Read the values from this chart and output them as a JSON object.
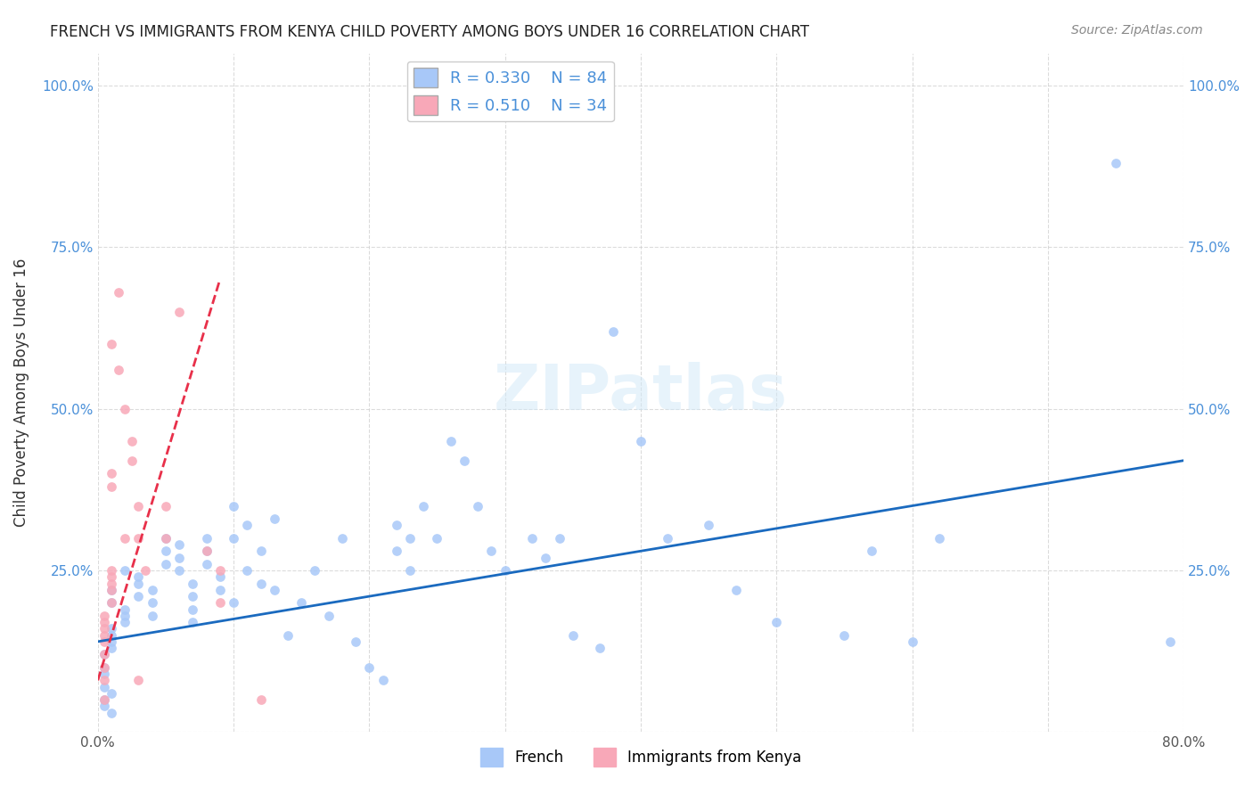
{
  "title": "FRENCH VS IMMIGRANTS FROM KENYA CHILD POVERTY AMONG BOYS UNDER 16 CORRELATION CHART",
  "source": "Source: ZipAtlas.com",
  "xlabel_bottom": "",
  "ylabel": "Child Poverty Among Boys Under 16",
  "x_min": 0.0,
  "x_max": 0.8,
  "y_min": 0.0,
  "y_max": 1.05,
  "x_ticks": [
    0.0,
    0.1,
    0.2,
    0.3,
    0.4,
    0.5,
    0.6,
    0.7,
    0.8
  ],
  "x_tick_labels": [
    "0.0%",
    "",
    "",
    "",
    "",
    "",
    "",
    "",
    "80.0%"
  ],
  "y_ticks": [
    0.0,
    0.25,
    0.5,
    0.75,
    1.0
  ],
  "y_tick_labels": [
    "",
    "25.0%",
    "50.0%",
    "75.0%",
    "100.0%"
  ],
  "legend_r1": "R = 0.330",
  "legend_n1": "N = 84",
  "legend_r2": "R = 0.510",
  "legend_n2": "N = 34",
  "french_color": "#a8c8f8",
  "kenya_color": "#f8a8b8",
  "french_line_color": "#1a6abf",
  "kenya_line_color": "#e8304a",
  "watermark": "ZIPatlas",
  "french_scatter_x": [
    0.01,
    0.01,
    0.02,
    0.02,
    0.01,
    0.01,
    0.01,
    0.005,
    0.005,
    0.005,
    0.005,
    0.01,
    0.005,
    0.005,
    0.01,
    0.01,
    0.02,
    0.02,
    0.03,
    0.03,
    0.03,
    0.04,
    0.04,
    0.04,
    0.05,
    0.05,
    0.05,
    0.06,
    0.06,
    0.06,
    0.07,
    0.07,
    0.07,
    0.07,
    0.08,
    0.08,
    0.08,
    0.09,
    0.09,
    0.1,
    0.1,
    0.1,
    0.11,
    0.11,
    0.12,
    0.12,
    0.13,
    0.13,
    0.14,
    0.15,
    0.16,
    0.17,
    0.18,
    0.19,
    0.2,
    0.21,
    0.22,
    0.22,
    0.23,
    0.23,
    0.24,
    0.25,
    0.26,
    0.27,
    0.28,
    0.29,
    0.3,
    0.32,
    0.33,
    0.34,
    0.35,
    0.37,
    0.38,
    0.4,
    0.42,
    0.45,
    0.47,
    0.5,
    0.55,
    0.57,
    0.6,
    0.62,
    0.75,
    0.79
  ],
  "french_scatter_y": [
    0.2,
    0.22,
    0.18,
    0.25,
    0.15,
    0.14,
    0.13,
    0.12,
    0.1,
    0.09,
    0.07,
    0.06,
    0.05,
    0.04,
    0.03,
    0.16,
    0.17,
    0.19,
    0.21,
    0.23,
    0.24,
    0.22,
    0.2,
    0.18,
    0.26,
    0.28,
    0.3,
    0.29,
    0.27,
    0.25,
    0.23,
    0.21,
    0.19,
    0.17,
    0.3,
    0.28,
    0.26,
    0.24,
    0.22,
    0.35,
    0.3,
    0.2,
    0.32,
    0.25,
    0.28,
    0.23,
    0.33,
    0.22,
    0.15,
    0.2,
    0.25,
    0.18,
    0.3,
    0.14,
    0.1,
    0.08,
    0.32,
    0.28,
    0.3,
    0.25,
    0.35,
    0.3,
    0.45,
    0.42,
    0.35,
    0.28,
    0.25,
    0.3,
    0.27,
    0.3,
    0.15,
    0.13,
    0.62,
    0.45,
    0.3,
    0.32,
    0.22,
    0.17,
    0.15,
    0.28,
    0.14,
    0.3,
    0.88,
    0.14
  ],
  "kenya_scatter_x": [
    0.005,
    0.005,
    0.005,
    0.005,
    0.005,
    0.005,
    0.005,
    0.005,
    0.01,
    0.01,
    0.01,
    0.01,
    0.01,
    0.005,
    0.01,
    0.01,
    0.01,
    0.015,
    0.015,
    0.02,
    0.02,
    0.025,
    0.025,
    0.03,
    0.03,
    0.03,
    0.035,
    0.05,
    0.05,
    0.06,
    0.08,
    0.09,
    0.09,
    0.12
  ],
  "kenya_scatter_y": [
    0.17,
    0.18,
    0.16,
    0.15,
    0.14,
    0.12,
    0.1,
    0.08,
    0.2,
    0.22,
    0.23,
    0.24,
    0.25,
    0.05,
    0.38,
    0.4,
    0.6,
    0.68,
    0.56,
    0.5,
    0.3,
    0.42,
    0.45,
    0.35,
    0.3,
    0.08,
    0.25,
    0.3,
    0.35,
    0.65,
    0.28,
    0.25,
    0.2,
    0.05
  ],
  "french_line_x": [
    0.0,
    0.8
  ],
  "french_line_y": [
    0.14,
    0.42
  ],
  "kenya_line_x": [
    0.0,
    0.09
  ],
  "kenya_line_y": [
    0.08,
    0.7
  ]
}
